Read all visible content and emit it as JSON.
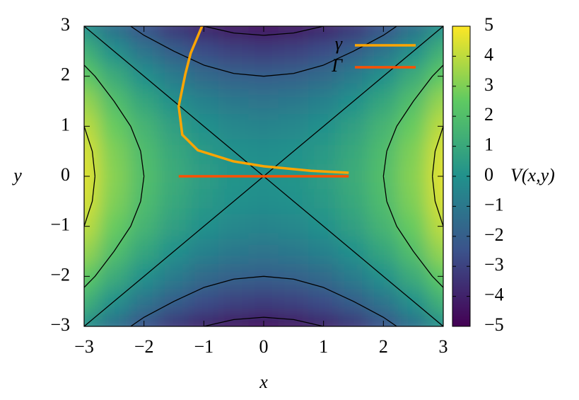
{
  "chart_data": {
    "type": "heatmap",
    "x_label": "x",
    "y_label": "y",
    "colorbar_label": "V(x,y)",
    "x": [
      -3,
      -2.5,
      -2,
      -1.5,
      -1,
      -0.5,
      0,
      0.5,
      1,
      1.5,
      2,
      2.5,
      3
    ],
    "y": [
      -3,
      -2.5,
      -2,
      -1.5,
      -1,
      -0.5,
      0,
      0.5,
      1,
      1.5,
      2,
      2.5,
      3
    ],
    "z": [
      [
        0,
        -1.375,
        -2.5,
        -3.375,
        -4,
        -4.375,
        -4.5,
        -4.375,
        -4,
        -3.375,
        -2.5,
        -1.375,
        0
      ],
      [
        1.375,
        0,
        -1.125,
        -2,
        -2.625,
        -3,
        -3.125,
        -3,
        -2.625,
        -2,
        -1.125,
        0,
        1.375
      ],
      [
        2.5,
        1.125,
        0,
        -0.875,
        -1.5,
        -1.875,
        -2,
        -1.875,
        -1.5,
        -0.875,
        0,
        1.125,
        2.5
      ],
      [
        3.375,
        2,
        0.875,
        0,
        -0.625,
        -1,
        -1.125,
        -1,
        -0.625,
        0,
        0.875,
        2,
        3.375
      ],
      [
        4,
        2.625,
        1.5,
        0.625,
        0,
        -0.375,
        -0.5,
        -0.375,
        0,
        0.625,
        1.5,
        2.625,
        4
      ],
      [
        4.375,
        3,
        1.875,
        1,
        0.375,
        0,
        -0.125,
        0,
        0.375,
        1,
        1.875,
        3,
        4.375
      ],
      [
        4.5,
        3.125,
        2,
        1.125,
        0.5,
        0.125,
        0,
        0.125,
        0.5,
        1.125,
        2,
        3.125,
        4.5
      ],
      [
        4.375,
        3,
        1.875,
        1,
        0.375,
        0,
        -0.125,
        0,
        0.375,
        1,
        1.875,
        3,
        4.375
      ],
      [
        4,
        2.625,
        1.5,
        0.625,
        0,
        -0.375,
        -0.5,
        -0.375,
        0,
        0.625,
        1.5,
        2.625,
        4
      ],
      [
        3.375,
        2,
        0.875,
        0,
        -0.625,
        -1,
        -1.125,
        -1,
        -0.625,
        0,
        0.875,
        2,
        3.375
      ],
      [
        2.5,
        1.125,
        0,
        -0.875,
        -1.5,
        -1.875,
        -2,
        -1.875,
        -1.5,
        -0.875,
        0,
        1.125,
        2.5
      ],
      [
        1.375,
        0,
        -1.125,
        -2,
        -2.625,
        -3,
        -3.125,
        -3,
        -2.625,
        -2,
        -1.125,
        0,
        1.375
      ],
      [
        0,
        -1.375,
        -2.5,
        -3.375,
        -4,
        -4.375,
        -4.5,
        -4.375,
        -4,
        -3.375,
        -2.5,
        -1.375,
        0
      ]
    ],
    "colormap": "viridis",
    "contour_levels": [
      -4,
      -2,
      0,
      2,
      4
    ],
    "contour_color": "#000000",
    "xlim": [
      -3,
      3
    ],
    "ylim": [
      -3,
      3
    ],
    "zlim": [
      -5,
      5
    ],
    "xticks": [
      {
        "value": -3,
        "label": "−3"
      },
      {
        "value": -2,
        "label": "−2"
      },
      {
        "value": -1,
        "label": "−1"
      },
      0,
      1,
      2,
      3
    ],
    "yticks": [
      {
        "value": -3,
        "label": "−3"
      },
      {
        "value": -2,
        "label": "−2"
      },
      {
        "value": -1,
        "label": "−1"
      },
      0,
      1,
      2,
      3
    ],
    "zticks": [
      {
        "value": -5,
        "label": "−5"
      },
      {
        "value": -4,
        "label": "−4"
      },
      {
        "value": -3,
        "label": "−3"
      },
      {
        "value": -2,
        "label": "−2"
      },
      {
        "value": -1,
        "label": "−1"
      },
      0,
      1,
      2,
      3,
      4,
      5
    ],
    "series": [
      {
        "name": "γ",
        "color": "#ffa500",
        "x": [
          1.42,
          0.79,
          0,
          -0.51,
          -1.1,
          -1.36,
          -1.42,
          -1.31,
          -1.22,
          -1.03
        ],
        "y": [
          0.07,
          0.11,
          0.2,
          0.3,
          0.52,
          0.83,
          1.4,
          2.04,
          2.46,
          3
        ]
      },
      {
        "name": "Γ",
        "color": "#ff5000",
        "x": [
          -1.42,
          1.42
        ],
        "y": [
          0,
          0
        ]
      }
    ],
    "legend": "upper right"
  }
}
